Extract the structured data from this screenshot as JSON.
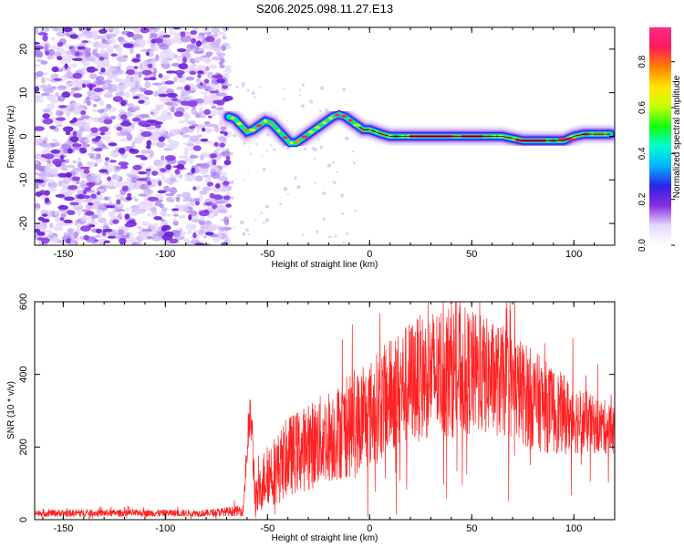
{
  "title": "S206.2025.098.11.27.E13",
  "chart_data": [
    {
      "type": "heatmap",
      "xlabel": "Height of straight line (km)",
      "ylabel": "Frequency (Hz)",
      "xlim": [
        -164,
        120
      ],
      "ylim": [
        -25,
        25
      ],
      "xticks": [
        -150,
        -100,
        -50,
        0,
        50,
        100
      ],
      "yticks": [
        -20,
        -10,
        0,
        10,
        20
      ],
      "colorbar": {
        "label": "Normalized spectral amplitude",
        "range": [
          0,
          0.95
        ],
        "ticks": [
          0.0,
          0.2,
          0.4,
          0.6,
          0.8
        ],
        "colors": [
          "#ffffff",
          "#e6d8fb",
          "#8a2be2",
          "#2b24e6",
          "#00b4ff",
          "#00ffd0",
          "#10ff10",
          "#c8ff00",
          "#ffe600",
          "#ff8000",
          "#ff1a5a",
          "#ff2a88"
        ]
      },
      "noise_region_x": [
        -164,
        -69
      ],
      "trace": {
        "x": [
          -69,
          -66,
          -63,
          -60,
          -57,
          -54,
          -51,
          -48,
          -45,
          -42,
          -39,
          -36,
          -33,
          -30,
          -27,
          -24,
          -21,
          -18,
          -15,
          -12,
          -9,
          -6,
          -3,
          0,
          3,
          6,
          10,
          15,
          20,
          25,
          30,
          40,
          50,
          60,
          65,
          70,
          75,
          80,
          85,
          90,
          95,
          100,
          105,
          110,
          118
        ],
        "y": [
          4.5,
          4,
          2.5,
          1,
          1.5,
          2.5,
          3.5,
          3,
          1.5,
          0,
          -1.5,
          -1.5,
          -0.5,
          0.5,
          1.5,
          2.5,
          3.5,
          4.5,
          5,
          4.5,
          3.5,
          2.5,
          1.5,
          1.5,
          1,
          0.5,
          0,
          0,
          0,
          0,
          0,
          0,
          0,
          0,
          0,
          -0.5,
          -1,
          -1,
          -1,
          -1,
          -1,
          0,
          0.5,
          0.5,
          0.5
        ],
        "line_from_x": -5
      }
    },
    {
      "type": "line",
      "xlabel": "Height of straight line (km)",
      "ylabel": "SNR (10 * v/v)",
      "xlim": [
        -164,
        120
      ],
      "ylim": [
        0,
        600
      ],
      "xticks": [
        -150,
        -100,
        -50,
        0,
        50,
        100
      ],
      "yticks": [
        0,
        200,
        400,
        600
      ],
      "color": "#ff2020",
      "envelope": {
        "x": [
          -164,
          -140,
          -110,
          -80,
          -62,
          -59,
          -58,
          -56,
          -55,
          -52,
          -50,
          -45,
          -40,
          -30,
          -20,
          -10,
          0,
          10,
          20,
          30,
          37,
          45,
          60,
          70,
          80,
          90,
          100,
          110,
          120
        ],
        "y": [
          18,
          18,
          18,
          18,
          25,
          260,
          280,
          60,
          55,
          110,
          130,
          140,
          175,
          200,
          230,
          255,
          290,
          340,
          380,
          400,
          410,
          410,
          390,
          370,
          330,
          300,
          280,
          260,
          250
        ],
        "spread": [
          10,
          10,
          10,
          10,
          15,
          60,
          80,
          60,
          50,
          80,
          90,
          100,
          110,
          120,
          130,
          140,
          150,
          160,
          170,
          180,
          190,
          180,
          160,
          150,
          140,
          120,
          100,
          80,
          70
        ]
      }
    }
  ]
}
